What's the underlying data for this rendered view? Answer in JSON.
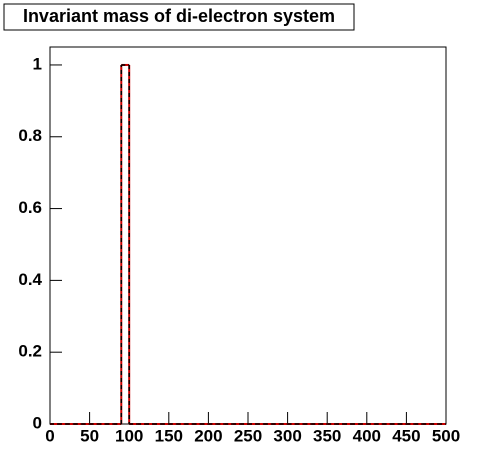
{
  "chart_data": {
    "type": "histogram",
    "title": "Invariant mass of di-electron system",
    "bins": [
      0,
      10,
      20,
      30,
      40,
      50,
      60,
      70,
      80,
      90,
      100,
      110,
      120,
      130,
      140,
      150,
      160,
      170,
      180,
      190,
      200,
      210,
      220,
      230,
      240,
      250,
      260,
      270,
      280,
      290,
      300,
      310,
      320,
      330,
      340,
      350,
      360,
      370,
      380,
      390,
      400,
      410,
      420,
      430,
      440,
      450,
      460,
      470,
      480,
      490,
      500
    ],
    "series": [
      {
        "color": "#cc0000",
        "style": "solid",
        "values": [
          0,
          0,
          0,
          0,
          0,
          0,
          0,
          0,
          0,
          1,
          0,
          0,
          0,
          0,
          0,
          0,
          0,
          0,
          0,
          0,
          0,
          0,
          0,
          0,
          0,
          0,
          0,
          0,
          0,
          0,
          0,
          0,
          0,
          0,
          0,
          0,
          0,
          0,
          0,
          0,
          0,
          0,
          0,
          0,
          0,
          0,
          0,
          0,
          0,
          0
        ]
      },
      {
        "color": "#000000",
        "style": "dashed",
        "values": [
          0,
          0,
          0,
          0,
          0,
          0,
          0,
          0,
          0,
          1,
          0,
          0,
          0,
          0,
          0,
          0,
          0,
          0,
          0,
          0,
          0,
          0,
          0,
          0,
          0,
          0,
          0,
          0,
          0,
          0,
          0,
          0,
          0,
          0,
          0,
          0,
          0,
          0,
          0,
          0,
          0,
          0,
          0,
          0,
          0,
          0,
          0,
          0,
          0,
          0
        ]
      }
    ],
    "xlim": [
      0,
      500
    ],
    "xticks": [
      0,
      50,
      100,
      150,
      200,
      250,
      300,
      350,
      400,
      450,
      500
    ],
    "ylim": [
      0,
      1.05
    ],
    "yticks": [
      0,
      0.2,
      0.4,
      0.6,
      0.8,
      1
    ]
  }
}
